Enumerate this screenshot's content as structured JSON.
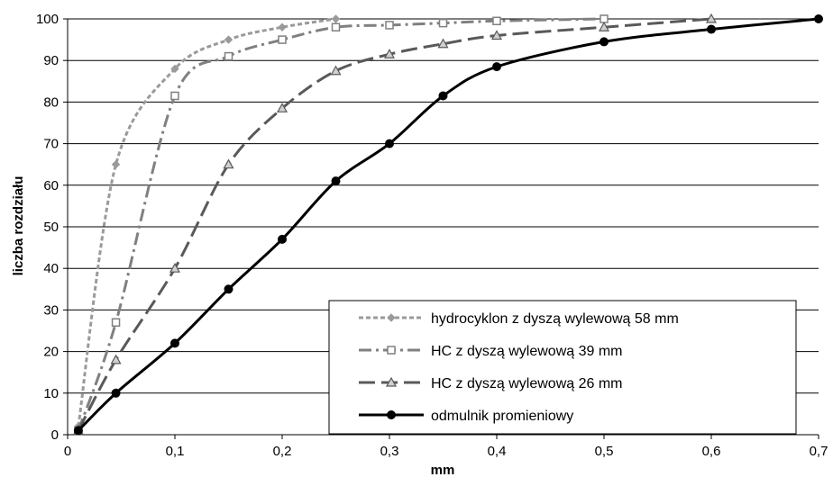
{
  "chart_data": {
    "type": "line",
    "title": "",
    "xlabel": "mm",
    "ylabel": "liczba rozdziału",
    "xlim": [
      0,
      0.7
    ],
    "ylim": [
      0,
      100
    ],
    "x_ticks": [
      "0",
      "0,1",
      "0,2",
      "0,3",
      "0,4",
      "0,5",
      "0,6",
      "0,7"
    ],
    "y_ticks": [
      "0",
      "10",
      "20",
      "30",
      "40",
      "50",
      "60",
      "70",
      "80",
      "90",
      "100"
    ],
    "grid": "horizontal",
    "legend_position": "bottom-right",
    "series": [
      {
        "name": "hydrocyklon z dyszą wylewową 58 mm",
        "color": "#9a9a9a",
        "dash": "short-dash",
        "marker": "diamond",
        "x": [
          0.01,
          0.045,
          0.1,
          0.15,
          0.2,
          0.25
        ],
        "y": [
          2,
          65,
          88,
          95,
          98,
          100
        ]
      },
      {
        "name": "HC z dyszą wylewową 39 mm",
        "color": "#808080",
        "dash": "dash-dot",
        "marker": "square",
        "x": [
          0.01,
          0.045,
          0.1,
          0.15,
          0.2,
          0.25,
          0.3,
          0.35,
          0.4,
          0.5
        ],
        "y": [
          1,
          27,
          81.5,
          91,
          95,
          98,
          98.5,
          99,
          99.5,
          100
        ]
      },
      {
        "name": "HC z dyszą wylewową 26 mm",
        "color": "#595959",
        "dash": "long-dash",
        "marker": "triangle",
        "x": [
          0.01,
          0.045,
          0.1,
          0.15,
          0.2,
          0.25,
          0.3,
          0.35,
          0.4,
          0.5,
          0.6
        ],
        "y": [
          1,
          18,
          40,
          65,
          78.5,
          87.5,
          91.5,
          94,
          96,
          98,
          100
        ]
      },
      {
        "name": "odmulnik promieniowy",
        "color": "#000000",
        "dash": "solid",
        "marker": "circle",
        "x": [
          0.01,
          0.045,
          0.1,
          0.15,
          0.2,
          0.25,
          0.3,
          0.35,
          0.4,
          0.5,
          0.6,
          0.7
        ],
        "y": [
          1,
          10,
          22,
          35,
          47,
          61,
          70,
          81.5,
          88.5,
          94.5,
          97.5,
          100
        ]
      }
    ]
  }
}
